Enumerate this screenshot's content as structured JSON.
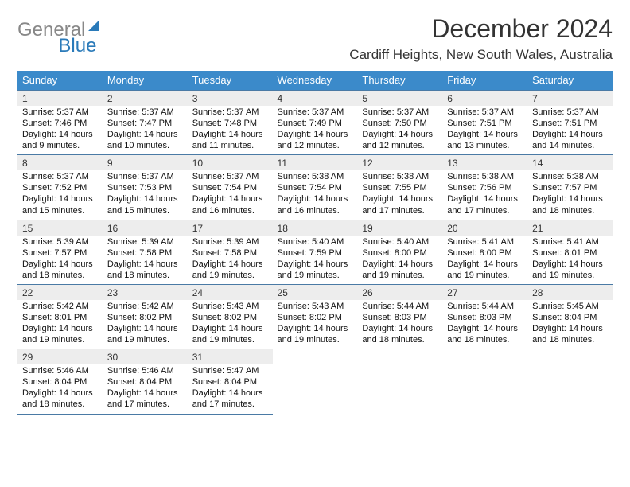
{
  "logo": {
    "part1": "General",
    "part2": "Blue"
  },
  "title": "December 2024",
  "location": "Cardiff Heights, New South Wales, Australia",
  "colors": {
    "header_bg": "#3b8aca",
    "daynum_bg": "#ededed",
    "border": "#4a7aa5",
    "header_text": "#ffffff"
  },
  "weekdays": [
    "Sunday",
    "Monday",
    "Tuesday",
    "Wednesday",
    "Thursday",
    "Friday",
    "Saturday"
  ],
  "weeks": [
    [
      {
        "n": "1",
        "sunrise": "5:37 AM",
        "sunset": "7:46 PM",
        "dl": "14 hours and 9 minutes."
      },
      {
        "n": "2",
        "sunrise": "5:37 AM",
        "sunset": "7:47 PM",
        "dl": "14 hours and 10 minutes."
      },
      {
        "n": "3",
        "sunrise": "5:37 AM",
        "sunset": "7:48 PM",
        "dl": "14 hours and 11 minutes."
      },
      {
        "n": "4",
        "sunrise": "5:37 AM",
        "sunset": "7:49 PM",
        "dl": "14 hours and 12 minutes."
      },
      {
        "n": "5",
        "sunrise": "5:37 AM",
        "sunset": "7:50 PM",
        "dl": "14 hours and 12 minutes."
      },
      {
        "n": "6",
        "sunrise": "5:37 AM",
        "sunset": "7:51 PM",
        "dl": "14 hours and 13 minutes."
      },
      {
        "n": "7",
        "sunrise": "5:37 AM",
        "sunset": "7:51 PM",
        "dl": "14 hours and 14 minutes."
      }
    ],
    [
      {
        "n": "8",
        "sunrise": "5:37 AM",
        "sunset": "7:52 PM",
        "dl": "14 hours and 15 minutes."
      },
      {
        "n": "9",
        "sunrise": "5:37 AM",
        "sunset": "7:53 PM",
        "dl": "14 hours and 15 minutes."
      },
      {
        "n": "10",
        "sunrise": "5:37 AM",
        "sunset": "7:54 PM",
        "dl": "14 hours and 16 minutes."
      },
      {
        "n": "11",
        "sunrise": "5:38 AM",
        "sunset": "7:54 PM",
        "dl": "14 hours and 16 minutes."
      },
      {
        "n": "12",
        "sunrise": "5:38 AM",
        "sunset": "7:55 PM",
        "dl": "14 hours and 17 minutes."
      },
      {
        "n": "13",
        "sunrise": "5:38 AM",
        "sunset": "7:56 PM",
        "dl": "14 hours and 17 minutes."
      },
      {
        "n": "14",
        "sunrise": "5:38 AM",
        "sunset": "7:57 PM",
        "dl": "14 hours and 18 minutes."
      }
    ],
    [
      {
        "n": "15",
        "sunrise": "5:39 AM",
        "sunset": "7:57 PM",
        "dl": "14 hours and 18 minutes."
      },
      {
        "n": "16",
        "sunrise": "5:39 AM",
        "sunset": "7:58 PM",
        "dl": "14 hours and 18 minutes."
      },
      {
        "n": "17",
        "sunrise": "5:39 AM",
        "sunset": "7:58 PM",
        "dl": "14 hours and 19 minutes."
      },
      {
        "n": "18",
        "sunrise": "5:40 AM",
        "sunset": "7:59 PM",
        "dl": "14 hours and 19 minutes."
      },
      {
        "n": "19",
        "sunrise": "5:40 AM",
        "sunset": "8:00 PM",
        "dl": "14 hours and 19 minutes."
      },
      {
        "n": "20",
        "sunrise": "5:41 AM",
        "sunset": "8:00 PM",
        "dl": "14 hours and 19 minutes."
      },
      {
        "n": "21",
        "sunrise": "5:41 AM",
        "sunset": "8:01 PM",
        "dl": "14 hours and 19 minutes."
      }
    ],
    [
      {
        "n": "22",
        "sunrise": "5:42 AM",
        "sunset": "8:01 PM",
        "dl": "14 hours and 19 minutes."
      },
      {
        "n": "23",
        "sunrise": "5:42 AM",
        "sunset": "8:02 PM",
        "dl": "14 hours and 19 minutes."
      },
      {
        "n": "24",
        "sunrise": "5:43 AM",
        "sunset": "8:02 PM",
        "dl": "14 hours and 19 minutes."
      },
      {
        "n": "25",
        "sunrise": "5:43 AM",
        "sunset": "8:02 PM",
        "dl": "14 hours and 19 minutes."
      },
      {
        "n": "26",
        "sunrise": "5:44 AM",
        "sunset": "8:03 PM",
        "dl": "14 hours and 18 minutes."
      },
      {
        "n": "27",
        "sunrise": "5:44 AM",
        "sunset": "8:03 PM",
        "dl": "14 hours and 18 minutes."
      },
      {
        "n": "28",
        "sunrise": "5:45 AM",
        "sunset": "8:04 PM",
        "dl": "14 hours and 18 minutes."
      }
    ],
    [
      {
        "n": "29",
        "sunrise": "5:46 AM",
        "sunset": "8:04 PM",
        "dl": "14 hours and 18 minutes."
      },
      {
        "n": "30",
        "sunrise": "5:46 AM",
        "sunset": "8:04 PM",
        "dl": "14 hours and 17 minutes."
      },
      {
        "n": "31",
        "sunrise": "5:47 AM",
        "sunset": "8:04 PM",
        "dl": "14 hours and 17 minutes."
      },
      null,
      null,
      null,
      null
    ]
  ]
}
